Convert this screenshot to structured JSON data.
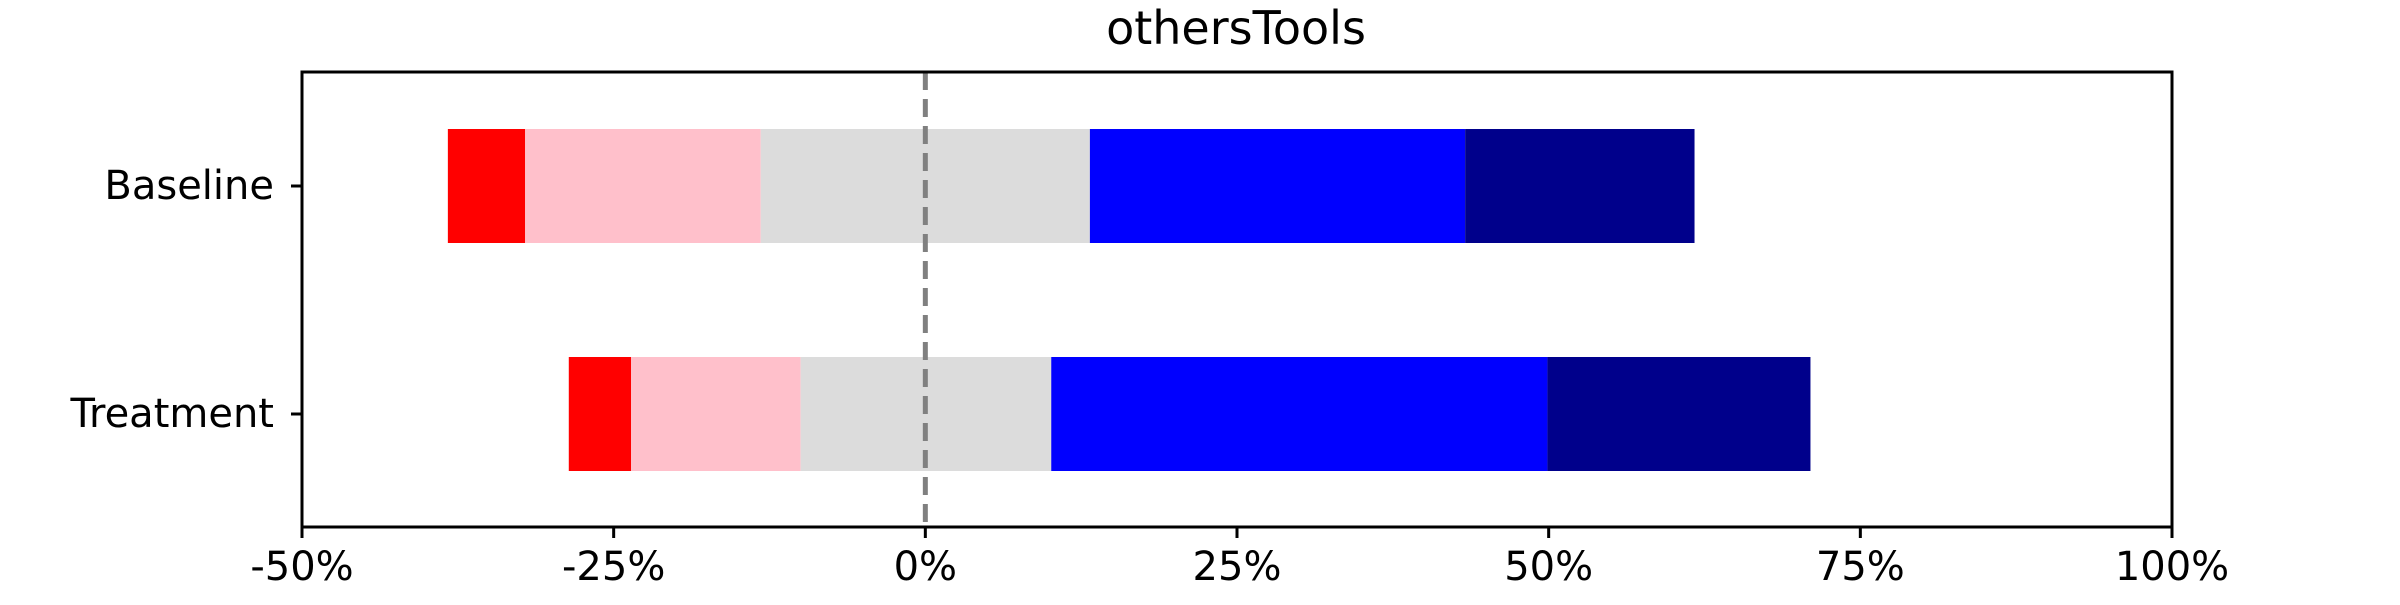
{
  "chart_data": {
    "type": "bar",
    "orientation": "horizontal",
    "stacked": true,
    "diverging": true,
    "title": "othersTools",
    "xlabel": "",
    "ylabel": "",
    "xlim": [
      -50,
      100
    ],
    "x_ticks": [
      -50,
      -25,
      0,
      25,
      50,
      75,
      100
    ],
    "x_tick_labels": [
      "-50%",
      "-25%",
      "0%",
      "25%",
      "50%",
      "75%",
      "100%"
    ],
    "center_line_at": 0,
    "grid": false,
    "legend": "none",
    "categories": [
      "Baseline",
      "Treatment"
    ],
    "series": [
      {
        "color": "#ff0000",
        "start": [
          -38.3,
          -28.6
        ],
        "end": [
          -32.1,
          -23.6
        ]
      },
      {
        "color": "#ffc0cb",
        "start": [
          -32.1,
          -23.6
        ],
        "end": [
          -13.2,
          -10.0
        ]
      },
      {
        "color": "#dcdcdc",
        "start": [
          -13.2,
          -10.0
        ],
        "end": [
          13.2,
          10.1
        ]
      },
      {
        "color": "#0000ff",
        "start": [
          13.2,
          10.1
        ],
        "end": [
          43.3,
          49.9
        ]
      },
      {
        "color": "#00008b",
        "start": [
          43.3,
          49.9
        ],
        "end": [
          61.7,
          71.0
        ]
      }
    ]
  }
}
